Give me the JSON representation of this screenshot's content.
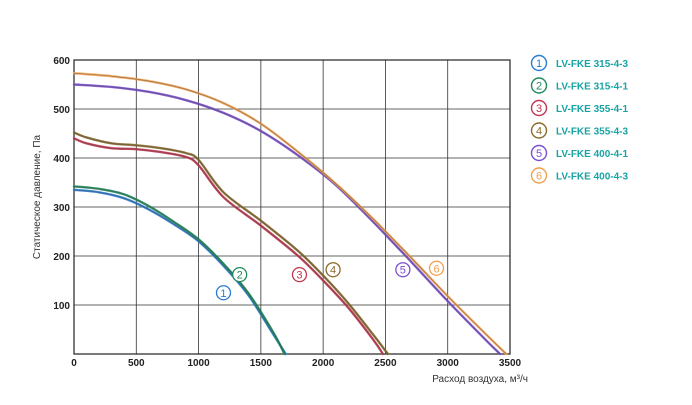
{
  "chart_data": {
    "type": "line",
    "title": "",
    "xlabel": "Расход воздуха, м³/ч",
    "ylabel": "Статическое давление, Па",
    "xlim": [
      0,
      3500
    ],
    "ylim": [
      0,
      600
    ],
    "x_ticks": [
      0,
      500,
      1000,
      1500,
      2000,
      2500,
      3000,
      3500
    ],
    "y_ticks": [
      100,
      200,
      300,
      400,
      500,
      600
    ],
    "grid": true,
    "legend_position": "right",
    "series": [
      {
        "name": "LV-FKE 315-4-3",
        "marker": "1",
        "color": "#2a7bd1",
        "x": [
          0,
          200,
          400,
          600,
          800,
          1000,
          1200,
          1400,
          1600,
          1700
        ],
        "y": [
          335,
          330,
          318,
          295,
          265,
          230,
          180,
          120,
          40,
          0
        ],
        "marker_at": [
          1200,
          125
        ]
      },
      {
        "name": "LV-FKE 315-4-1",
        "marker": "2",
        "color": "#1f8a5b",
        "x": [
          0,
          200,
          400,
          600,
          800,
          1000,
          1200,
          1400,
          1600,
          1690
        ],
        "y": [
          342,
          337,
          326,
          302,
          270,
          234,
          184,
          124,
          44,
          0
        ],
        "marker_at": [
          1330,
          162
        ]
      },
      {
        "name": "LV-FKE 355-4-1",
        "marker": "3",
        "color": "#c0354f",
        "x": [
          0,
          100,
          300,
          500,
          700,
          900,
          1000,
          1200,
          1500,
          1800,
          2000,
          2200,
          2400,
          2480
        ],
        "y": [
          440,
          430,
          420,
          418,
          412,
          402,
          385,
          320,
          262,
          200,
          150,
          95,
          30,
          0
        ],
        "marker_at": [
          1810,
          162
        ]
      },
      {
        "name": "LV-FKE 355-4-3",
        "marker": "4",
        "color": "#8a6a2a",
        "x": [
          0,
          100,
          300,
          500,
          700,
          900,
          1000,
          1200,
          1500,
          1800,
          2000,
          2200,
          2400,
          2520
        ],
        "y": [
          452,
          442,
          430,
          426,
          420,
          410,
          396,
          330,
          272,
          210,
          160,
          104,
          40,
          0
        ],
        "marker_at": [
          2080,
          172
        ]
      },
      {
        "name": "LV-FKE 400-4-1",
        "marker": "5",
        "color": "#7a4fcf",
        "x": [
          0,
          300,
          600,
          900,
          1200,
          1500,
          1800,
          2100,
          2400,
          2700,
          3000,
          3300,
          3420
        ],
        "y": [
          550,
          545,
          535,
          518,
          492,
          455,
          405,
          345,
          270,
          190,
          108,
          30,
          0
        ],
        "marker_at": [
          2640,
          172
        ]
      },
      {
        "name": "LV-FKE 400-4-3",
        "marker": "6",
        "color": "#f0a050",
        "x": [
          0,
          300,
          600,
          900,
          1200,
          1500,
          1800,
          2100,
          2400,
          2700,
          3000,
          3300,
          3470
        ],
        "y": [
          573,
          567,
          557,
          540,
          512,
          470,
          412,
          348,
          276,
          198,
          118,
          42,
          0
        ],
        "marker_at": [
          2910,
          175
        ]
      }
    ]
  }
}
